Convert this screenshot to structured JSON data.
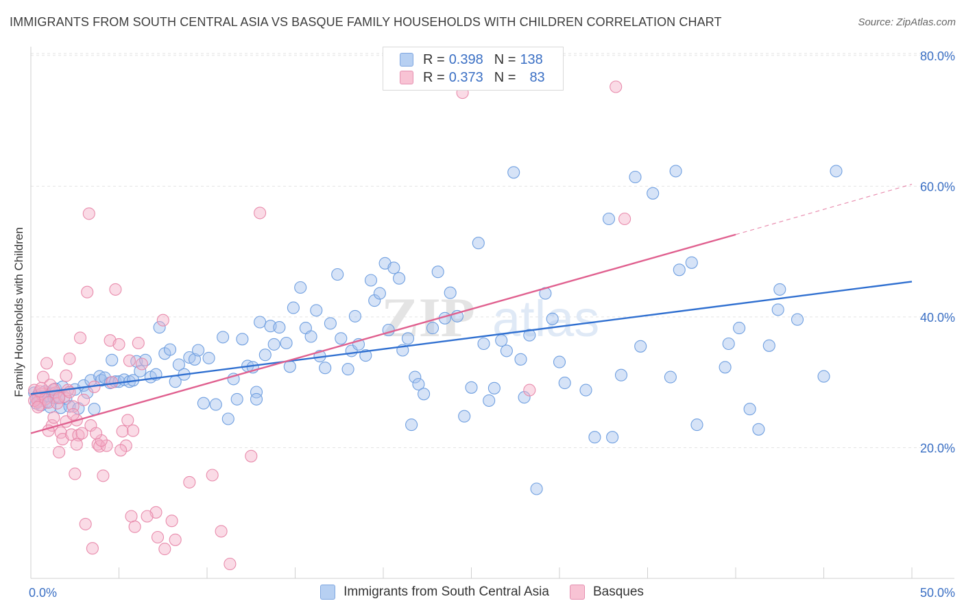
{
  "title": "IMMIGRANTS FROM SOUTH CENTRAL ASIA VS BASQUE FAMILY HOUSEHOLDS WITH CHILDREN CORRELATION CHART",
  "source": "Source: ZipAtlas.com",
  "watermark": {
    "part1": "ZIP",
    "part2": "atlas"
  },
  "legend": {
    "rows": [
      {
        "r_label": "R = ",
        "r_value": "0.398",
        "n_label": "N = ",
        "n_value": "138",
        "fill": "#b7d0f2",
        "stroke": "#7ea6e0"
      },
      {
        "r_label": "R = ",
        "r_value": "0.373",
        "n_label": "N = ",
        "n_value": "83",
        "fill": "#f8c3d4",
        "stroke": "#e58fb0"
      }
    ]
  },
  "chart_data": {
    "type": "scatter",
    "title": "IMMIGRANTS FROM SOUTH CENTRAL ASIA VS BASQUE FAMILY HOUSEHOLDS WITH CHILDREN CORRELATION CHART",
    "xlabel": "",
    "ylabel": "Family Households with Children",
    "xlim": [
      0,
      50
    ],
    "ylim": [
      0,
      81
    ],
    "x_tick_labels": [
      "0.0%",
      "50.0%"
    ],
    "y_ticks": [
      20,
      40,
      60,
      80
    ],
    "y_tick_labels": [
      "20.0%",
      "40.0%",
      "60.0%",
      "80.0%"
    ],
    "grid": true,
    "legend_position": "top-center",
    "series": [
      {
        "name": "Immigrants from South Central Asia",
        "color": "#6f9fe0",
        "fill": "rgba(163,194,238,0.45)",
        "trend_color": "#2f6fd0",
        "trend": {
          "x0": 0,
          "y0": 28.2,
          "x1": 50,
          "y1": 45.4
        },
        "points": [
          [
            0.2,
            28.4
          ],
          [
            0.3,
            27.5
          ],
          [
            0.3,
            26.8
          ],
          [
            0.4,
            28.0
          ],
          [
            0.5,
            27.2
          ],
          [
            0.6,
            26.5
          ],
          [
            0.7,
            27.8
          ],
          [
            0.8,
            28.6
          ],
          [
            0.9,
            27.0
          ],
          [
            1.0,
            27.9
          ],
          [
            1.1,
            26.2
          ],
          [
            1.2,
            28.3
          ],
          [
            1.3,
            27.6
          ],
          [
            1.4,
            29.0
          ],
          [
            1.6,
            27.8
          ],
          [
            1.7,
            26.1
          ],
          [
            1.8,
            29.3
          ],
          [
            2.0,
            27.5
          ],
          [
            2.2,
            26.3
          ],
          [
            2.5,
            28.9
          ],
          [
            2.7,
            26.0
          ],
          [
            3.0,
            29.5
          ],
          [
            3.2,
            28.4
          ],
          [
            3.4,
            30.3
          ],
          [
            3.6,
            25.9
          ],
          [
            3.9,
            30.9
          ],
          [
            4.0,
            30.3
          ],
          [
            4.2,
            30.7
          ],
          [
            4.5,
            29.9
          ],
          [
            4.6,
            33.4
          ],
          [
            4.8,
            30.1
          ],
          [
            5.0,
            30.1
          ],
          [
            5.3,
            30.4
          ],
          [
            5.6,
            30.1
          ],
          [
            5.8,
            30.3
          ],
          [
            6.0,
            33.2
          ],
          [
            6.2,
            31.7
          ],
          [
            6.5,
            33.4
          ],
          [
            6.8,
            30.8
          ],
          [
            7.1,
            31.2
          ],
          [
            7.3,
            38.4
          ],
          [
            7.6,
            34.4
          ],
          [
            7.9,
            35.0
          ],
          [
            8.2,
            30.1
          ],
          [
            8.4,
            32.7
          ],
          [
            8.7,
            31.2
          ],
          [
            9.0,
            33.8
          ],
          [
            9.3,
            33.5
          ],
          [
            9.5,
            34.9
          ],
          [
            9.8,
            26.8
          ],
          [
            10.1,
            33.7
          ],
          [
            10.5,
            26.6
          ],
          [
            10.9,
            36.9
          ],
          [
            11.2,
            24.4
          ],
          [
            11.5,
            30.5
          ],
          [
            11.7,
            27.4
          ],
          [
            12.0,
            36.6
          ],
          [
            12.3,
            32.5
          ],
          [
            12.6,
            32.3
          ],
          [
            12.8,
            28.5
          ],
          [
            13.0,
            39.2
          ],
          [
            13.3,
            34.2
          ],
          [
            13.6,
            38.6
          ],
          [
            13.8,
            35.8
          ],
          [
            14.1,
            38.4
          ],
          [
            14.5,
            36.0
          ],
          [
            14.7,
            32.4
          ],
          [
            14.9,
            41.4
          ],
          [
            15.3,
            44.5
          ],
          [
            15.6,
            38.3
          ],
          [
            15.9,
            37.0
          ],
          [
            16.2,
            41.0
          ],
          [
            16.4,
            34.0
          ],
          [
            16.7,
            32.2
          ],
          [
            17.0,
            39.0
          ],
          [
            17.4,
            46.5
          ],
          [
            17.6,
            36.7
          ],
          [
            18.0,
            32.0
          ],
          [
            18.2,
            34.8
          ],
          [
            18.4,
            40.1
          ],
          [
            18.6,
            35.8
          ],
          [
            19.0,
            34.1
          ],
          [
            19.3,
            45.6
          ],
          [
            19.5,
            42.5
          ],
          [
            19.8,
            43.6
          ],
          [
            20.1,
            48.2
          ],
          [
            20.3,
            38.0
          ],
          [
            20.6,
            47.5
          ],
          [
            20.9,
            45.9
          ],
          [
            21.1,
            34.9
          ],
          [
            21.4,
            36.7
          ],
          [
            21.6,
            23.5
          ],
          [
            21.8,
            30.8
          ],
          [
            22.0,
            29.7
          ],
          [
            22.3,
            28.2
          ],
          [
            22.8,
            38.3
          ],
          [
            23.1,
            46.9
          ],
          [
            23.5,
            39.8
          ],
          [
            23.8,
            43.7
          ],
          [
            24.2,
            40.1
          ],
          [
            24.6,
            24.8
          ],
          [
            25.0,
            29.2
          ],
          [
            25.4,
            51.3
          ],
          [
            25.7,
            35.9
          ],
          [
            26.0,
            27.2
          ],
          [
            26.3,
            29.1
          ],
          [
            26.7,
            36.4
          ],
          [
            27.0,
            34.8
          ],
          [
            27.4,
            62.1
          ],
          [
            27.8,
            33.5
          ],
          [
            28.0,
            27.7
          ],
          [
            28.3,
            37.2
          ],
          [
            28.7,
            13.7
          ],
          [
            29.2,
            43.6
          ],
          [
            29.6,
            39.7
          ],
          [
            30.0,
            33.1
          ],
          [
            30.3,
            29.9
          ],
          [
            31.5,
            28.8
          ],
          [
            32.0,
            21.6
          ],
          [
            33.0,
            21.6
          ],
          [
            32.8,
            55.0
          ],
          [
            33.5,
            31.1
          ],
          [
            34.3,
            61.4
          ],
          [
            34.6,
            35.5
          ],
          [
            35.3,
            58.9
          ],
          [
            36.3,
            30.8
          ],
          [
            36.8,
            47.2
          ],
          [
            37.5,
            48.3
          ],
          [
            37.8,
            23.5
          ],
          [
            39.4,
            32.3
          ],
          [
            39.6,
            35.9
          ],
          [
            40.2,
            38.3
          ],
          [
            40.8,
            25.9
          ],
          [
            41.3,
            22.8
          ],
          [
            41.9,
            35.6
          ],
          [
            42.4,
            41.1
          ],
          [
            42.5,
            44.2
          ],
          [
            43.5,
            39.6
          ],
          [
            45.0,
            30.9
          ],
          [
            45.7,
            62.3
          ],
          [
            36.6,
            62.3
          ],
          [
            12.8,
            27.4
          ]
        ]
      },
      {
        "name": "Basques",
        "color": "#e88aab",
        "fill": "rgba(245,176,200,0.45)",
        "trend_color": "#e0608f",
        "trend": {
          "x0": 0,
          "y0": 22.2,
          "x1": 40,
          "y1": 52.6
        },
        "trend_dash_end": {
          "x": 50,
          "y": 60.3
        },
        "points": [
          [
            0.2,
            28.8
          ],
          [
            0.3,
            27.6
          ],
          [
            0.4,
            27.0
          ],
          [
            0.5,
            26.5
          ],
          [
            0.6,
            28.2
          ],
          [
            0.7,
            30.8
          ],
          [
            0.8,
            27.4
          ],
          [
            0.9,
            32.9
          ],
          [
            1.0,
            26.9
          ],
          [
            1.1,
            29.6
          ],
          [
            1.2,
            23.4
          ],
          [
            1.3,
            24.6
          ],
          [
            1.4,
            28.4
          ],
          [
            1.5,
            26.8
          ],
          [
            1.6,
            19.3
          ],
          [
            1.7,
            22.3
          ],
          [
            1.8,
            21.3
          ],
          [
            1.9,
            27.8
          ],
          [
            2.0,
            31.0
          ],
          [
            2.1,
            28.8
          ],
          [
            2.2,
            33.6
          ],
          [
            2.3,
            22.0
          ],
          [
            2.4,
            26.3
          ],
          [
            2.5,
            16.0
          ],
          [
            2.6,
            24.2
          ],
          [
            2.7,
            21.9
          ],
          [
            2.8,
            36.8
          ],
          [
            2.9,
            22.2
          ],
          [
            3.0,
            27.3
          ],
          [
            3.1,
            8.3
          ],
          [
            3.3,
            55.8
          ],
          [
            3.2,
            43.8
          ],
          [
            3.5,
            4.6
          ],
          [
            3.6,
            29.3
          ],
          [
            3.8,
            20.5
          ],
          [
            3.9,
            20.2
          ],
          [
            4.1,
            15.7
          ],
          [
            4.3,
            20.3
          ],
          [
            4.5,
            36.4
          ],
          [
            4.6,
            30.0
          ],
          [
            4.8,
            44.2
          ],
          [
            5.0,
            35.8
          ],
          [
            5.2,
            22.5
          ],
          [
            5.4,
            20.3
          ],
          [
            5.6,
            33.3
          ],
          [
            5.7,
            9.5
          ],
          [
            5.8,
            22.6
          ],
          [
            5.9,
            7.9
          ],
          [
            6.1,
            36.0
          ],
          [
            6.3,
            32.8
          ],
          [
            7.1,
            10.1
          ],
          [
            7.2,
            6.3
          ],
          [
            7.5,
            39.5
          ],
          [
            7.6,
            4.5
          ],
          [
            8.0,
            8.8
          ],
          [
            8.2,
            5.9
          ],
          [
            9.0,
            14.7
          ],
          [
            10.3,
            15.8
          ],
          [
            10.8,
            7.2
          ],
          [
            11.3,
            2.2
          ],
          [
            12.5,
            18.7
          ],
          [
            13.0,
            55.9
          ],
          [
            24.5,
            74.3
          ],
          [
            28.3,
            28.8
          ],
          [
            33.7,
            55.0
          ],
          [
            0.2,
            27.2
          ],
          [
            0.5,
            28.6
          ],
          [
            0.4,
            26.2
          ],
          [
            0.6,
            29.1
          ],
          [
            1.0,
            22.6
          ],
          [
            1.3,
            28.9
          ],
          [
            1.6,
            27.6
          ],
          [
            2.0,
            24.0
          ],
          [
            2.4,
            25.1
          ],
          [
            2.6,
            20.5
          ],
          [
            3.4,
            23.4
          ],
          [
            4.0,
            21.1
          ],
          [
            5.1,
            19.6
          ],
          [
            5.5,
            24.2
          ],
          [
            6.6,
            9.5
          ],
          [
            33.2,
            75.2
          ],
          [
            3.7,
            22.2
          ],
          [
            2.2,
            28.5
          ]
        ]
      }
    ]
  },
  "bottom_legend": [
    {
      "label": "Immigrants from South Central Asia",
      "fill": "#b7d0f2",
      "stroke": "#7ea6e0"
    },
    {
      "label": "Basques",
      "fill": "#f8c3d4",
      "stroke": "#e58fb0"
    }
  ]
}
